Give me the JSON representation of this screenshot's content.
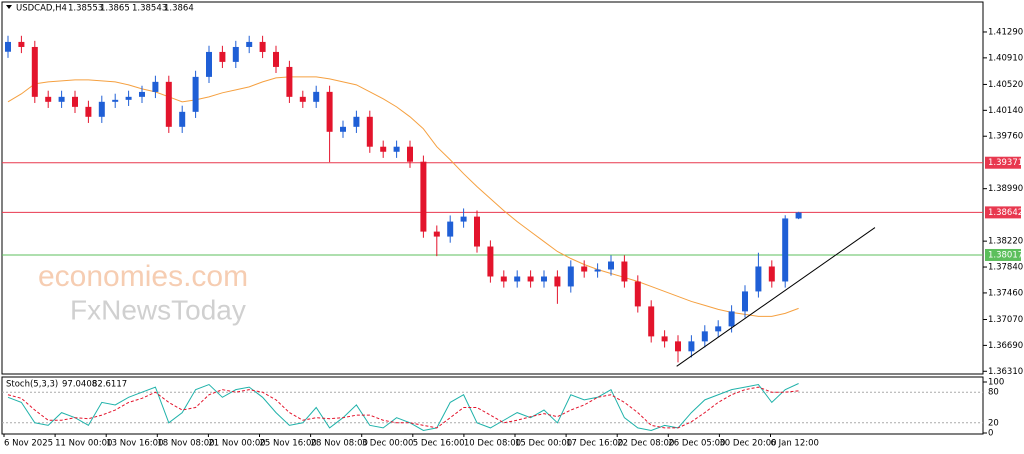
{
  "chart_data": {
    "type": "candlestick",
    "symbol": "USDCAD,H4",
    "watermark": [
      "economies.com",
      "FxNewsToday"
    ],
    "ylim": [
      1.3627,
      1.4173
    ],
    "yticks": [
      {
        "value": 1.4129,
        "label": "1.41290"
      },
      {
        "value": 1.4091,
        "label": "1.40910"
      },
      {
        "value": 1.4052,
        "label": "1.40520"
      },
      {
        "value": 1.4014,
        "label": "1.40140"
      },
      {
        "value": 1.3976,
        "label": "1.39760"
      },
      {
        "value": 1.3899,
        "label": "1.38990"
      },
      {
        "value": 1.3822,
        "label": "1.38220"
      },
      {
        "value": 1.3784,
        "label": "1.37840"
      },
      {
        "value": 1.3746,
        "label": "1.37460"
      },
      {
        "value": 1.3707,
        "label": "1.37070"
      },
      {
        "value": 1.3669,
        "label": "1.36690"
      },
      {
        "value": 1.3631,
        "label": "1.36310"
      }
    ],
    "x_labels": [
      "6 Nov 2025",
      "11 Nov 00:00",
      "13 Nov 16:00",
      "18 Nov 08:00",
      "21 Nov 00:00",
      "25 Nov 16:00",
      "28 Nov 08:00",
      "3 Dec 00:00",
      "5 Dec 16:00",
      "10 Dec 08:00",
      "15 Dec 00:00",
      "17 Dec 16:00",
      "22 Dec 08:00",
      "26 Dec 05:00",
      "30 Dec 20:00",
      "6 Jan 12:00"
    ],
    "up_color": "#1f5fd6",
    "down_color": "#e3142c",
    "candles": {
      "open": [
        1.41,
        1.41144,
        1.4107,
        1.40338,
        1.40265,
        1.40338,
        1.40191,
        1.40045,
        1.40265,
        1.40294,
        1.40338,
        1.4041,
        1.40558,
        1.39898,
        1.40118,
        1.40631,
        1.40997,
        1.40851,
        1.4107,
        1.41144,
        1.40997,
        1.40777,
        1.40338,
        1.40265,
        1.40411,
        1.39825,
        1.39898,
        1.40045,
        1.39606,
        1.39532,
        1.39606,
        1.39386,
        1.3836,
        1.38287,
        1.38507,
        1.3858,
        1.38141,
        1.37701,
        1.37628,
        1.37701,
        1.37628,
        1.37701,
        1.37555,
        1.37848,
        1.37774,
        1.37804,
        1.37921,
        1.37628,
        1.37262,
        1.36822,
        1.36749,
        1.36603,
        1.36749,
        1.36896,
        1.36969,
        1.37189,
        1.37482,
        1.37848,
        1.37628,
        1.38553
      ],
      "high": [
        1.41234,
        1.41234,
        1.4116,
        1.40428,
        1.40428,
        1.40428,
        1.40281,
        1.40355,
        1.40384,
        1.40428,
        1.405,
        1.40648,
        1.40648,
        1.40208,
        1.40721,
        1.41087,
        1.41087,
        1.4116,
        1.41234,
        1.41234,
        1.41087,
        1.40867,
        1.40428,
        1.40501,
        1.40501,
        1.39988,
        1.40135,
        1.40135,
        1.39696,
        1.39696,
        1.39696,
        1.39476,
        1.3845,
        1.38597,
        1.387,
        1.3867,
        1.38231,
        1.37791,
        1.37791,
        1.37791,
        1.37791,
        1.37791,
        1.37938,
        1.37938,
        1.37894,
        1.38011,
        1.38011,
        1.37718,
        1.37352,
        1.36912,
        1.36839,
        1.36839,
        1.36986,
        1.37059,
        1.37279,
        1.37572,
        1.3805,
        1.37938,
        1.386,
        1.3865
      ],
      "low": [
        1.4091,
        1.4098,
        1.40248,
        1.40175,
        1.40175,
        1.40101,
        1.39955,
        1.39955,
        1.40175,
        1.40204,
        1.40248,
        1.4032,
        1.39808,
        1.39808,
        1.40028,
        1.40541,
        1.40761,
        1.40761,
        1.4098,
        1.40907,
        1.40687,
        1.40248,
        1.40175,
        1.40175,
        1.3938,
        1.39735,
        1.39808,
        1.39516,
        1.39442,
        1.39442,
        1.39296,
        1.3827,
        1.38,
        1.38197,
        1.38417,
        1.38051,
        1.37611,
        1.37538,
        1.37538,
        1.37538,
        1.37538,
        1.373,
        1.37465,
        1.37684,
        1.37684,
        1.37714,
        1.37538,
        1.37172,
        1.36732,
        1.36659,
        1.3644,
        1.36513,
        1.36659,
        1.36806,
        1.36879,
        1.37099,
        1.37392,
        1.37538,
        1.37538,
        1.38543
      ],
      "close": [
        1.41144,
        1.4107,
        1.40338,
        1.40265,
        1.40338,
        1.40191,
        1.40045,
        1.40265,
        1.40294,
        1.40338,
        1.4041,
        1.40558,
        1.39898,
        1.40118,
        1.40631,
        1.40997,
        1.40851,
        1.4107,
        1.41144,
        1.40997,
        1.40777,
        1.40338,
        1.40265,
        1.40411,
        1.39825,
        1.39898,
        1.40045,
        1.39606,
        1.39532,
        1.39606,
        1.39386,
        1.3836,
        1.38287,
        1.38507,
        1.3858,
        1.38141,
        1.37701,
        1.37628,
        1.37701,
        1.37628,
        1.37701,
        1.37555,
        1.37848,
        1.37774,
        1.37804,
        1.37921,
        1.37628,
        1.37262,
        1.36822,
        1.36749,
        1.36603,
        1.36749,
        1.36896,
        1.36969,
        1.37189,
        1.37482,
        1.37848,
        1.37628,
        1.38553,
        1.3864
      ]
    },
    "moving_average": {
      "color": "#f5a040",
      "values": [
        1.40265,
        1.40382,
        1.40528,
        1.40558,
        1.40572,
        1.40587,
        1.40587,
        1.40572,
        1.40558,
        1.40514,
        1.40455,
        1.40411,
        1.40338,
        1.40265,
        1.40294,
        1.40338,
        1.40397,
        1.4044,
        1.40484,
        1.40558,
        1.40616,
        1.40631,
        1.40631,
        1.40631,
        1.40602,
        1.40558,
        1.40514,
        1.40411,
        1.40309,
        1.40191,
        1.40045,
        1.39869,
        1.39606,
        1.39415,
        1.3921,
        1.3902,
        1.38844,
        1.38668,
        1.38507,
        1.3836,
        1.38214,
        1.38068,
        1.37965,
        1.37877,
        1.37804,
        1.37745,
        1.37687,
        1.37628,
        1.37555,
        1.37482,
        1.37408,
        1.37335,
        1.37277,
        1.37218,
        1.37174,
        1.37145,
        1.37116,
        1.37116,
        1.3716,
        1.37233
      ]
    },
    "levels": [
      {
        "value": 1.39371,
        "color": "#e8384f"
      },
      {
        "value": 1.38642,
        "color": "#e8384f"
      },
      {
        "value": 1.38017,
        "color": "#5cbf5c"
      }
    ],
    "trendline": {
      "x": [
        49.9,
        64.7
      ],
      "y": [
        1.36383,
        1.38419
      ],
      "color": "#000000"
    },
    "stoch": {
      "name": "Stoch(5,3,3)",
      "ylim": [
        0,
        100
      ],
      "yticks": [
        100,
        80,
        20,
        0
      ],
      "main": {
        "color": "#20b2aa",
        "values": [
          70,
          60,
          20,
          15,
          40,
          30,
          15,
          60,
          55,
          70,
          80,
          90,
          20,
          40,
          85,
          95,
          70,
          85,
          90,
          70,
          40,
          15,
          20,
          50,
          10,
          30,
          55,
          15,
          10,
          30,
          20,
          5,
          10,
          60,
          75,
          20,
          10,
          25,
          40,
          30,
          45,
          20,
          75,
          65,
          70,
          85,
          30,
          10,
          5,
          15,
          10,
          40,
          65,
          75,
          85,
          90,
          95,
          60,
          85,
          97.0408
        ]
      },
      "signal": {
        "color": "#e3142c",
        "values": [
          75,
          68,
          45,
          25,
          25,
          30,
          28,
          35,
          45,
          60,
          68,
          80,
          60,
          45,
          50,
          75,
          85,
          80,
          85,
          80,
          65,
          40,
          25,
          30,
          28,
          30,
          35,
          35,
          25,
          20,
          20,
          15,
          10,
          30,
          50,
          50,
          35,
          20,
          25,
          32,
          38,
          32,
          45,
          55,
          70,
          75,
          60,
          40,
          15,
          10,
          10,
          22,
          40,
          60,
          75,
          85,
          90,
          80,
          80,
          82.6117
        ]
      }
    }
  }
}
